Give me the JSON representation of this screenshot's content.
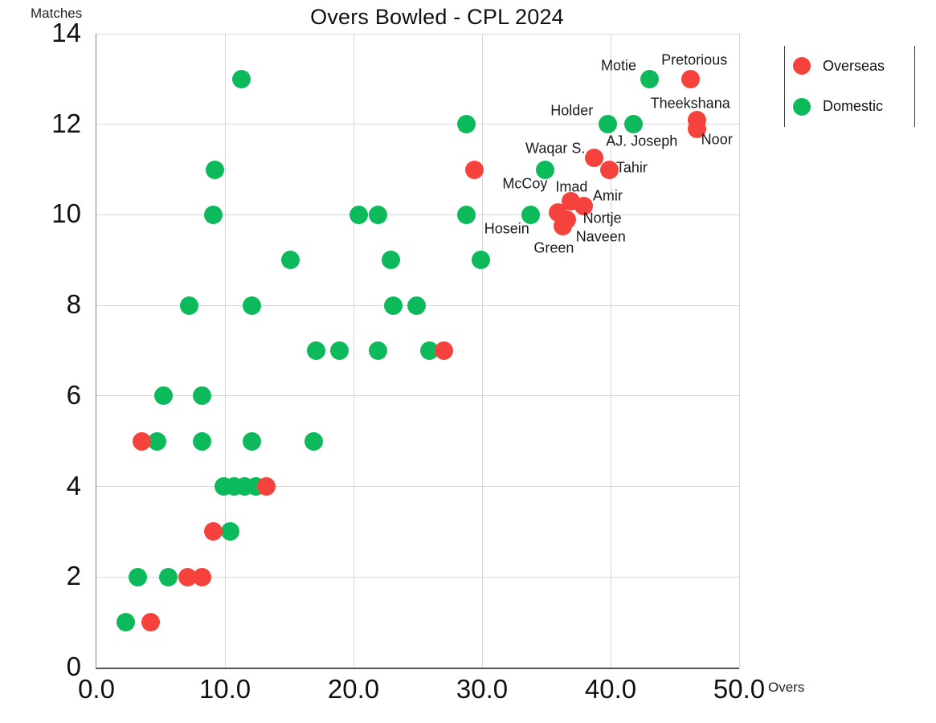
{
  "title": "Overs Bowled - CPL 2024",
  "x_axis": {
    "label": "Overs",
    "tick_values": [
      0,
      10,
      20,
      30,
      40,
      50
    ],
    "tick_labels": [
      "0.0",
      "10.0",
      "20.0",
      "30.0",
      "40.0",
      "50.0"
    ]
  },
  "y_axis": {
    "label": "Matches",
    "tick_values": [
      0,
      2,
      4,
      6,
      8,
      10,
      12,
      14
    ],
    "tick_labels": [
      "0",
      "2",
      "4",
      "6",
      "8",
      "10",
      "12",
      "14"
    ]
  },
  "legend": [
    {
      "label": "Overseas",
      "color": "#f6423c"
    },
    {
      "label": "Domestic",
      "color": "#0cba5b"
    }
  ],
  "colors": {
    "grid": "#d6d6d6",
    "axis": "#555555",
    "text": "#111111"
  },
  "chart_data": {
    "type": "scatter",
    "title": "Overs Bowled - CPL 2024",
    "xlabel": "Overs",
    "ylabel": "Matches",
    "xlim": [
      0,
      50
    ],
    "ylim": [
      0,
      14
    ],
    "grid": true,
    "legend_position": "top-right",
    "series": [
      {
        "name": "Domestic",
        "color": "#0cba5b",
        "points": [
          {
            "x": 11.3,
            "y": 13
          },
          {
            "x": 43.0,
            "y": 13,
            "label": "Motie",
            "dx": -38,
            "dy": -16
          },
          {
            "x": 28.8,
            "y": 12
          },
          {
            "x": 39.8,
            "y": 12,
            "label": "Holder",
            "dx": -45,
            "dy": -17
          },
          {
            "x": 41.8,
            "y": 12,
            "label": "AJ. Joseph",
            "dx": 10,
            "dy": 21
          },
          {
            "x": 9.2,
            "y": 11
          },
          {
            "x": 34.9,
            "y": 11,
            "label": "McCoy",
            "dx": -25,
            "dy": 18
          },
          {
            "x": 9.1,
            "y": 10
          },
          {
            "x": 20.4,
            "y": 10
          },
          {
            "x": 21.9,
            "y": 10
          },
          {
            "x": 28.8,
            "y": 10
          },
          {
            "x": 33.8,
            "y": 10,
            "label": "Hosein",
            "dx": -30,
            "dy": 18
          },
          {
            "x": 15.1,
            "y": 9
          },
          {
            "x": 22.9,
            "y": 9
          },
          {
            "x": 29.9,
            "y": 9
          },
          {
            "x": 7.2,
            "y": 8
          },
          {
            "x": 12.1,
            "y": 8
          },
          {
            "x": 23.1,
            "y": 8
          },
          {
            "x": 24.9,
            "y": 8
          },
          {
            "x": 17.1,
            "y": 7
          },
          {
            "x": 18.9,
            "y": 7
          },
          {
            "x": 21.9,
            "y": 7
          },
          {
            "x": 25.9,
            "y": 7
          },
          {
            "x": 5.2,
            "y": 6
          },
          {
            "x": 8.2,
            "y": 6
          },
          {
            "x": 4.7,
            "y": 5
          },
          {
            "x": 8.2,
            "y": 5
          },
          {
            "x": 12.1,
            "y": 5
          },
          {
            "x": 16.9,
            "y": 5
          },
          {
            "x": 9.9,
            "y": 4
          },
          {
            "x": 10.7,
            "y": 4
          },
          {
            "x": 11.5,
            "y": 4
          },
          {
            "x": 12.4,
            "y": 4
          },
          {
            "x": 10.4,
            "y": 3
          },
          {
            "x": 3.2,
            "y": 2
          },
          {
            "x": 5.6,
            "y": 2
          },
          {
            "x": 2.3,
            "y": 1
          }
        ]
      },
      {
        "name": "Overseas",
        "color": "#f6423c",
        "points": [
          {
            "x": 46.2,
            "y": 13,
            "label": "Pretorious",
            "dx": 5,
            "dy": -23
          },
          {
            "x": 46.7,
            "y": 12.1,
            "label": "Theekshana",
            "dx": -8,
            "dy": -20
          },
          {
            "x": 46.7,
            "y": 11.9,
            "label": "Noor",
            "dx": 25,
            "dy": 14
          },
          {
            "x": 29.4,
            "y": 11
          },
          {
            "x": 38.7,
            "y": 11.25,
            "label": "Waqar S.",
            "dx": -48,
            "dy": -12
          },
          {
            "x": 39.9,
            "y": 11,
            "label": "Tahir",
            "dx": 28,
            "dy": -2
          },
          {
            "x": 36.9,
            "y": 10.3,
            "label": "Imad",
            "dx": 1,
            "dy": -18
          },
          {
            "x": 37.9,
            "y": 10.2,
            "label": "Amir",
            "dx": 30,
            "dy": -12
          },
          {
            "x": 35.9,
            "y": 10.05,
            "label": "Green",
            "dx": -5,
            "dy": 44
          },
          {
            "x": 36.6,
            "y": 9.9,
            "label": "Nortje",
            "dx": 44,
            "dy": -1
          },
          {
            "x": 36.3,
            "y": 9.75,
            "label": "Naveen",
            "dx": 47,
            "dy": 13
          },
          {
            "x": 27.0,
            "y": 7
          },
          {
            "x": 3.5,
            "y": 5
          },
          {
            "x": 13.2,
            "y": 4
          },
          {
            "x": 9.1,
            "y": 3
          },
          {
            "x": 7.1,
            "y": 2
          },
          {
            "x": 8.2,
            "y": 2
          },
          {
            "x": 4.2,
            "y": 1
          }
        ]
      }
    ]
  }
}
